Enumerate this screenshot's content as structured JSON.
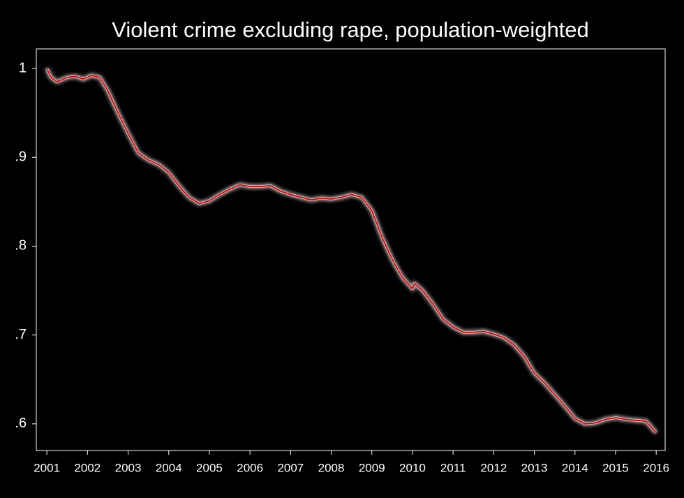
{
  "chart_data": {
    "type": "line",
    "title": "Violent crime excluding rape, population-weighted",
    "x": [
      2001.0,
      2001.1,
      2001.25,
      2001.5,
      2001.7,
      2001.9,
      2002.1,
      2002.3,
      2002.5,
      2002.75,
      2003.0,
      2003.25,
      2003.5,
      2003.75,
      2004.0,
      2004.25,
      2004.5,
      2004.75,
      2005.0,
      2005.25,
      2005.5,
      2005.75,
      2006.0,
      2006.25,
      2006.5,
      2006.75,
      2007.0,
      2007.25,
      2007.5,
      2007.75,
      2008.0,
      2008.25,
      2008.5,
      2008.75,
      2009.0,
      2009.25,
      2009.5,
      2009.75,
      2010.0,
      2010.05,
      2010.25,
      2010.5,
      2010.75,
      2011.0,
      2011.25,
      2011.5,
      2011.75,
      2012.0,
      2012.25,
      2012.5,
      2012.75,
      2013.0,
      2013.25,
      2013.5,
      2013.75,
      2014.0,
      2014.25,
      2014.5,
      2014.75,
      2015.0,
      2015.25,
      2015.5,
      2015.75,
      2016.0
    ],
    "values": [
      1.0,
      0.99,
      0.985,
      0.99,
      0.991,
      0.988,
      0.992,
      0.99,
      0.975,
      0.95,
      0.927,
      0.905,
      0.897,
      0.892,
      0.883,
      0.868,
      0.855,
      0.848,
      0.851,
      0.858,
      0.864,
      0.869,
      0.867,
      0.867,
      0.868,
      0.862,
      0.858,
      0.855,
      0.852,
      0.854,
      0.853,
      0.855,
      0.858,
      0.855,
      0.84,
      0.81,
      0.785,
      0.765,
      0.752,
      0.758,
      0.75,
      0.735,
      0.718,
      0.709,
      0.703,
      0.703,
      0.704,
      0.701,
      0.697,
      0.689,
      0.676,
      0.657,
      0.646,
      0.633,
      0.62,
      0.606,
      0.6,
      0.601,
      0.605,
      0.607,
      0.605,
      0.604,
      0.603,
      0.59
    ],
    "color": "#e00000",
    "xlim": [
      2000.74,
      2016.22
    ],
    "xticks": [
      2001,
      2002,
      2003,
      2004,
      2005,
      2006,
      2007,
      2008,
      2009,
      2010,
      2011,
      2012,
      2013,
      2014,
      2015,
      2016
    ],
    "ylim": [
      0.57,
      1.022
    ],
    "yticks": [
      1,
      {
        "value": 0.9,
        "label": ".9"
      },
      {
        "value": 0.8,
        "label": ".8"
      },
      {
        "value": 0.7,
        "label": ".7"
      },
      {
        "value": 0.6,
        "label": ".6"
      }
    ]
  }
}
